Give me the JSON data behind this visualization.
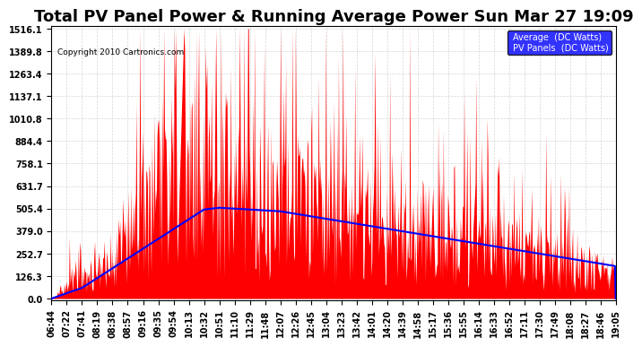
{
  "title": "Total PV Panel Power & Running Average Power Sun Mar 27 19:09",
  "copyright": "Copyright 2010 Cartronics.com",
  "legend_avg": "Average  (DC Watts)",
  "legend_pv": "PV Panels  (DC Watts)",
  "ymax": 1516.1,
  "yticks": [
    0.0,
    126.3,
    252.7,
    379.0,
    505.4,
    631.7,
    758.1,
    884.4,
    1010.8,
    1137.1,
    1263.4,
    1389.8,
    1516.1
  ],
  "xtick_labels": [
    "06:44",
    "07:22",
    "07:41",
    "08:19",
    "08:38",
    "08:57",
    "09:16",
    "09:35",
    "09:54",
    "10:13",
    "10:32",
    "10:51",
    "11:10",
    "11:29",
    "11:48",
    "12:07",
    "12:26",
    "12:45",
    "13:04",
    "13:23",
    "13:42",
    "14:01",
    "14:20",
    "14:39",
    "14:58",
    "15:17",
    "15:36",
    "15:55",
    "16:14",
    "16:33",
    "16:52",
    "17:11",
    "17:30",
    "17:49",
    "18:08",
    "18:27",
    "18:46",
    "19:05"
  ],
  "bg_color": "#ffffff",
  "plot_bg_color": "#ffffff",
  "grid_color": "#cccccc",
  "pv_color": "#ff0000",
  "avg_color": "#0000ff",
  "title_fontsize": 13,
  "tick_fontsize": 7
}
